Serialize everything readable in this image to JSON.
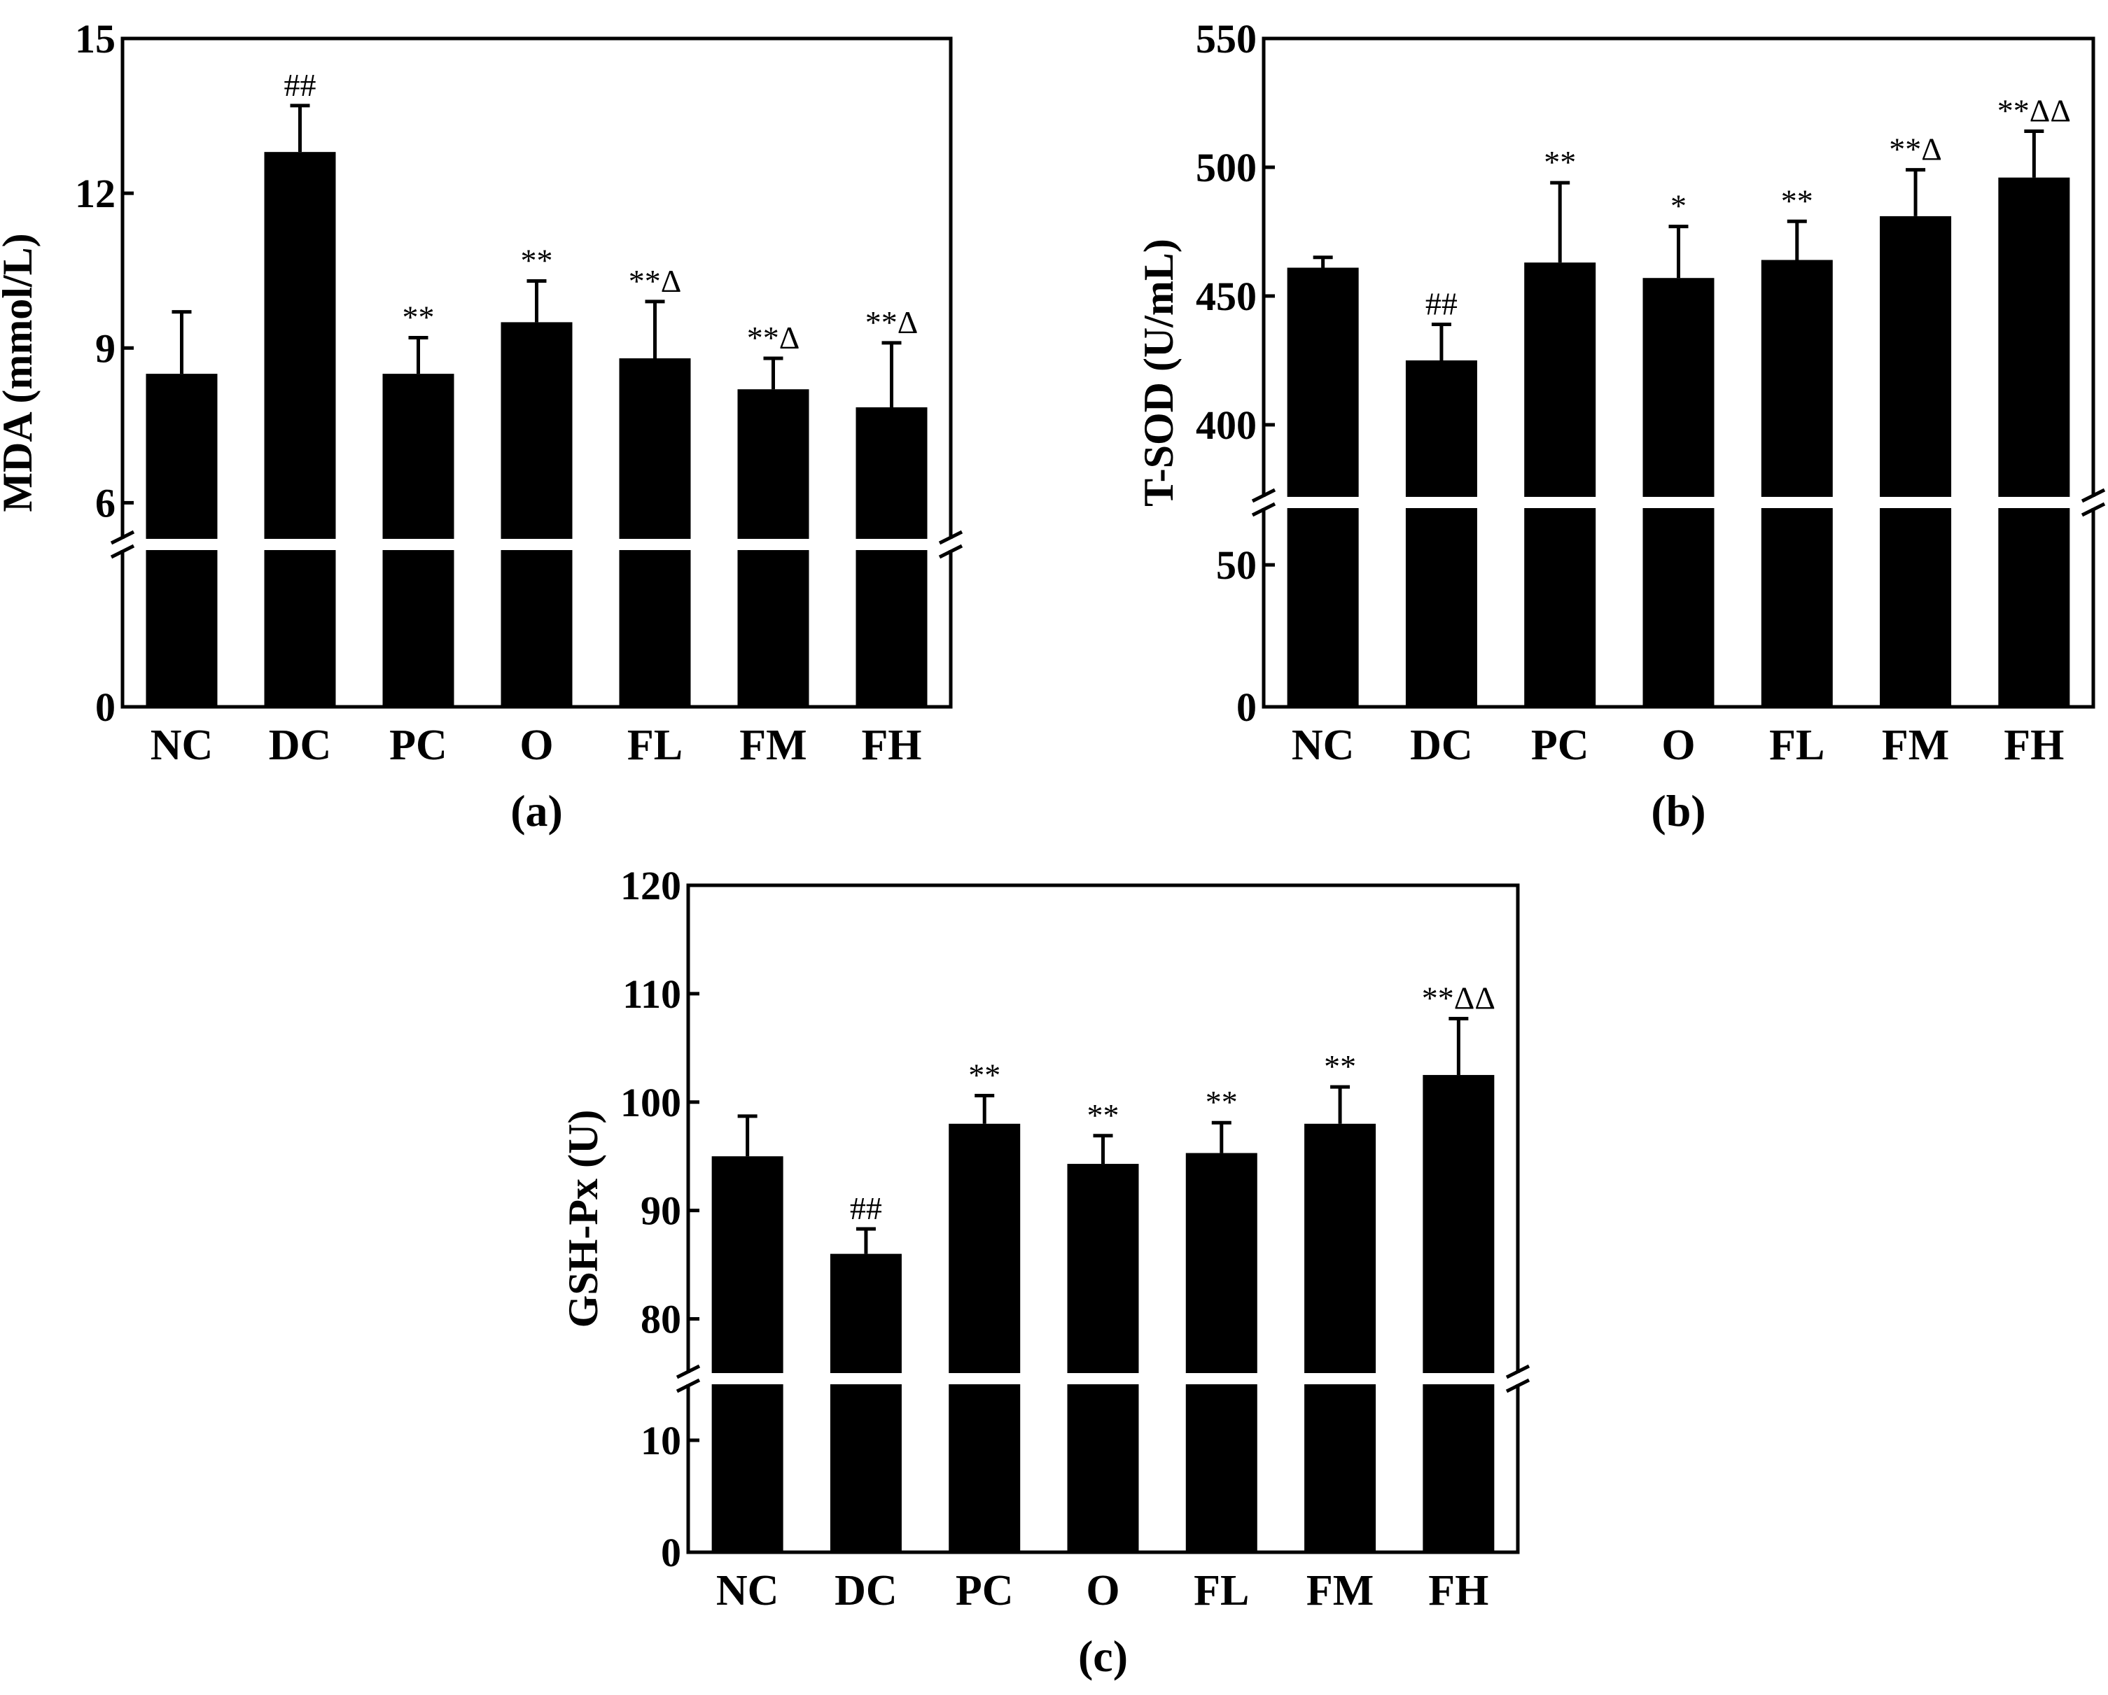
{
  "chart_data": [
    {
      "type": "bar",
      "panel": "(a)",
      "ylabel": "MDA (mmol/L)",
      "categories": [
        "NC",
        "DC",
        "PC",
        "O",
        "FL",
        "FM",
        "FH"
      ],
      "values": [
        8.5,
        12.8,
        8.5,
        9.5,
        8.8,
        8.2,
        7.85
      ],
      "errors": [
        1.2,
        0.9,
        0.7,
        0.8,
        1.1,
        0.6,
        1.25
      ],
      "annotations": [
        "",
        "##",
        "**",
        "**",
        "**Δ",
        "**Δ",
        "**Δ"
      ],
      "axis_break": true,
      "lower_range": [
        0,
        5
      ],
      "upper_range": [
        5.3,
        15
      ],
      "lower_ticks": [
        0
      ],
      "lower_tick_labels": [
        "0"
      ],
      "upper_ticks": [
        6,
        9,
        12,
        15
      ],
      "upper_tick_labels": [
        "6",
        "9",
        "12",
        "15"
      ],
      "grid": false
    },
    {
      "type": "bar",
      "panel": "(b)",
      "ylabel": "T-SOD (U/mL)",
      "categories": [
        "NC",
        "DC",
        "PC",
        "O",
        "FL",
        "FM",
        "FH"
      ],
      "values": [
        461,
        425,
        463,
        457,
        464,
        481,
        496
      ],
      "errors": [
        4,
        14,
        31,
        20,
        15,
        18,
        18
      ],
      "annotations": [
        "",
        "##",
        "**",
        "*",
        "**",
        "**Δ",
        "**ΔΔ"
      ],
      "axis_break": true,
      "lower_range": [
        0,
        70
      ],
      "upper_range": [
        372,
        550
      ],
      "lower_ticks": [
        0,
        50
      ],
      "lower_tick_labels": [
        "0",
        "50"
      ],
      "upper_ticks": [
        400,
        450,
        500,
        550
      ],
      "upper_tick_labels": [
        "400",
        "450",
        "500",
        "550"
      ],
      "grid": false
    },
    {
      "type": "bar",
      "panel": "(c)",
      "ylabel": "GSH-Px (U)",
      "categories": [
        "NC",
        "DC",
        "PC",
        "O",
        "FL",
        "FM",
        "FH"
      ],
      "values": [
        95,
        86,
        98,
        94.3,
        95.3,
        98,
        102.5
      ],
      "errors": [
        3.7,
        2.3,
        2.6,
        2.6,
        2.8,
        3.4,
        5.2
      ],
      "annotations": [
        "",
        "##",
        "**",
        "**",
        "**",
        "**",
        "**ΔΔ"
      ],
      "axis_break": true,
      "lower_range": [
        0,
        15
      ],
      "upper_range": [
        75,
        120
      ],
      "lower_ticks": [
        0,
        10
      ],
      "lower_tick_labels": [
        "0",
        "10"
      ],
      "upper_ticks": [
        80,
        90,
        100,
        110,
        120
      ],
      "upper_tick_labels": [
        "80",
        "90",
        "100",
        "110",
        "120"
      ],
      "grid": false
    }
  ]
}
